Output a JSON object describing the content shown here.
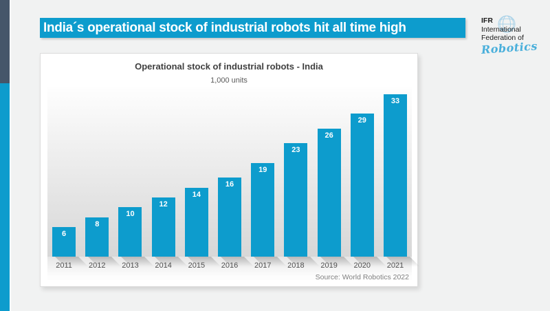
{
  "banner": {
    "title": "India´s operational stock of industrial robots hit all time high"
  },
  "logo": {
    "abbr": "IFR",
    "line2": "International",
    "line3": "Federation of",
    "script": "Robotics"
  },
  "chart_data": {
    "type": "bar",
    "title": "Operational stock of industrial robots - India",
    "subtitle": "1,000 units",
    "categories": [
      "2011",
      "2012",
      "2013",
      "2014",
      "2015",
      "2016",
      "2017",
      "2018",
      "2019",
      "2020",
      "2021"
    ],
    "values": [
      6,
      8,
      10,
      12,
      14,
      16,
      19,
      23,
      26,
      29,
      33
    ],
    "ylabel": "1,000 units",
    "ylim": [
      0,
      34.5
    ],
    "grid": false,
    "legend": "none",
    "value_label_position": "inside-top",
    "bar_color": "#0D9CCD",
    "source": "Source: World Robotics 2022"
  },
  "colors": {
    "accent_cyan": "#0D9CCD",
    "navy": "#45566A",
    "page_bg": "#F1F2F2",
    "title_text": "#3F3F3F",
    "subtitle_text": "#595959",
    "axis_text": "#4F4F4F",
    "source_text": "#7F7F7F",
    "logo_script": "#49AFDB",
    "globe_stroke": "#A9D2E8"
  }
}
